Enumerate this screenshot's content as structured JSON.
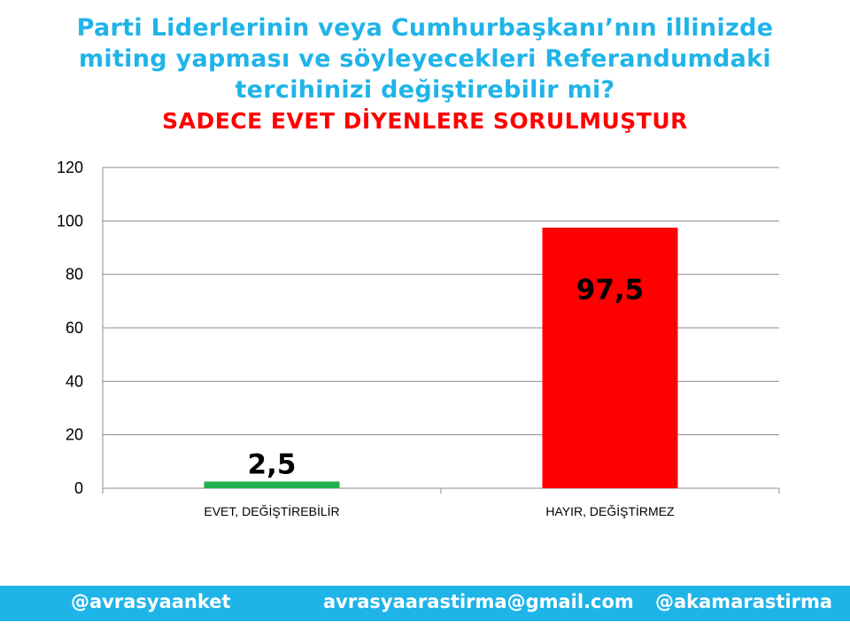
{
  "header": {
    "title_lines": [
      "Parti Liderlerinin veya Cumhurbaşkanı’nın illinizde",
      "miting yapması ve söyleyecekleri Referandumdaki",
      "tercihinizi değiştirebilir mi?"
    ],
    "subtitle": "SADECE EVET DİYENLERE SORULMUŞTUR"
  },
  "chart_data": {
    "type": "bar",
    "categories": [
      "EVET, DEĞİŞTİREBİLİR",
      "HAYIR, DEĞİŞTİRMEZ"
    ],
    "values": [
      2.5,
      97.5
    ],
    "data_labels": [
      "2,5",
      "97,5"
    ],
    "bar_colors": [
      "#22b14c",
      "#ff0000"
    ],
    "ylim": [
      0,
      120
    ],
    "yticks": [
      0,
      20,
      40,
      60,
      80,
      100,
      120
    ],
    "grid": true
  },
  "footer": {
    "left": "@avrasyaanket",
    "center": "avrasyaarastirma@gmail.com",
    "right": "@akamarastirma"
  }
}
